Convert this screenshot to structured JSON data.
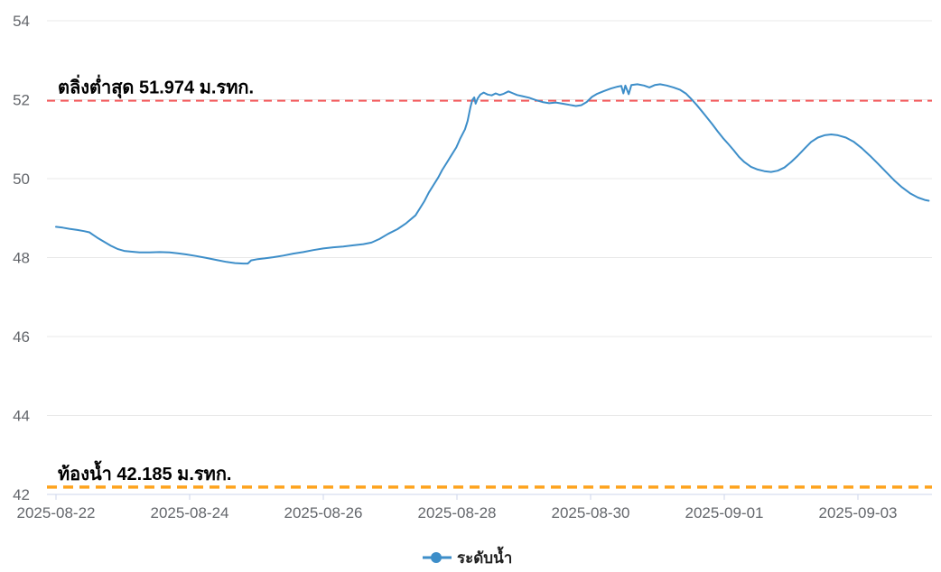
{
  "chart_data": {
    "type": "line",
    "title": "",
    "xlabel": "",
    "ylabel": "",
    "grid": true,
    "legend_position": "bottom-center",
    "ylim": [
      42,
      54
    ],
    "y_ticks": [
      42,
      44,
      46,
      48,
      50,
      52,
      54
    ],
    "x_range_days": [
      -0.14,
      13.11
    ],
    "x_tick_days": [
      0,
      2,
      4,
      6,
      8,
      10,
      12
    ],
    "x_tick_labels": [
      "2025-08-22",
      "2025-08-24",
      "2025-08-26",
      "2025-08-28",
      "2025-08-30",
      "2025-09-01",
      "2025-09-03"
    ],
    "reference_lines": [
      {
        "key": "bank-min",
        "label": "ตลิ่งต่ำสุด 51.974 ม.รทก.",
        "value": 51.974,
        "color": "#f4595b",
        "style": "dashed"
      },
      {
        "key": "riverbed",
        "label": "ท้องน้ำ 42.185 ม.รทก.",
        "value": 42.185,
        "color": "#fea31d",
        "style": "dashed"
      }
    ],
    "legend": [
      {
        "label": "ระดับน้ำ",
        "color": "#3d8ec9"
      }
    ],
    "series": [
      {
        "name": "ระดับน้ำ",
        "color": "#3d8ec9",
        "x_unit": "days since 2025-08-22",
        "points": [
          [
            0.0,
            48.78
          ],
          [
            0.1,
            48.76
          ],
          [
            0.2,
            48.73
          ],
          [
            0.32,
            48.7
          ],
          [
            0.42,
            48.67
          ],
          [
            0.5,
            48.64
          ],
          [
            0.55,
            48.58
          ],
          [
            0.62,
            48.5
          ],
          [
            0.72,
            48.4
          ],
          [
            0.82,
            48.3
          ],
          [
            0.92,
            48.22
          ],
          [
            1.02,
            48.17
          ],
          [
            1.12,
            48.15
          ],
          [
            1.25,
            48.13
          ],
          [
            1.4,
            48.13
          ],
          [
            1.55,
            48.14
          ],
          [
            1.7,
            48.13
          ],
          [
            1.82,
            48.11
          ],
          [
            1.95,
            48.08
          ],
          [
            2.1,
            48.04
          ],
          [
            2.25,
            47.99
          ],
          [
            2.4,
            47.94
          ],
          [
            2.55,
            47.89
          ],
          [
            2.68,
            47.86
          ],
          [
            2.8,
            47.85
          ],
          [
            2.87,
            47.85
          ],
          [
            2.92,
            47.93
          ],
          [
            3.02,
            47.96
          ],
          [
            3.12,
            47.98
          ],
          [
            3.25,
            48.01
          ],
          [
            3.4,
            48.05
          ],
          [
            3.55,
            48.1
          ],
          [
            3.7,
            48.14
          ],
          [
            3.85,
            48.19
          ],
          [
            4.0,
            48.23
          ],
          [
            4.15,
            48.26
          ],
          [
            4.3,
            48.28
          ],
          [
            4.45,
            48.31
          ],
          [
            4.6,
            48.34
          ],
          [
            4.72,
            48.38
          ],
          [
            4.84,
            48.47
          ],
          [
            4.97,
            48.6
          ],
          [
            5.11,
            48.72
          ],
          [
            5.24,
            48.87
          ],
          [
            5.38,
            49.07
          ],
          [
            5.51,
            49.42
          ],
          [
            5.58,
            49.65
          ],
          [
            5.65,
            49.84
          ],
          [
            5.72,
            50.03
          ],
          [
            5.78,
            50.22
          ],
          [
            5.85,
            50.41
          ],
          [
            5.92,
            50.6
          ],
          [
            5.99,
            50.79
          ],
          [
            6.05,
            51.02
          ],
          [
            6.12,
            51.25
          ],
          [
            6.16,
            51.46
          ],
          [
            6.2,
            51.8
          ],
          [
            6.23,
            51.99
          ],
          [
            6.26,
            52.06
          ],
          [
            6.28,
            51.9
          ],
          [
            6.31,
            52.03
          ],
          [
            6.35,
            52.13
          ],
          [
            6.4,
            52.18
          ],
          [
            6.46,
            52.13
          ],
          [
            6.52,
            52.11
          ],
          [
            6.58,
            52.16
          ],
          [
            6.64,
            52.12
          ],
          [
            6.7,
            52.15
          ],
          [
            6.77,
            52.21
          ],
          [
            6.84,
            52.16
          ],
          [
            6.9,
            52.12
          ],
          [
            6.98,
            52.09
          ],
          [
            7.08,
            52.05
          ],
          [
            7.18,
            51.99
          ],
          [
            7.28,
            51.94
          ],
          [
            7.38,
            51.91
          ],
          [
            7.48,
            51.93
          ],
          [
            7.58,
            51.9
          ],
          [
            7.68,
            51.87
          ],
          [
            7.78,
            51.84
          ],
          [
            7.86,
            51.86
          ],
          [
            7.94,
            51.94
          ],
          [
            8.02,
            52.07
          ],
          [
            8.1,
            52.15
          ],
          [
            8.2,
            52.22
          ],
          [
            8.3,
            52.28
          ],
          [
            8.4,
            52.33
          ],
          [
            8.46,
            52.35
          ],
          [
            8.49,
            52.16
          ],
          [
            8.52,
            52.36
          ],
          [
            8.57,
            52.14
          ],
          [
            8.61,
            52.37
          ],
          [
            8.7,
            52.39
          ],
          [
            8.8,
            52.36
          ],
          [
            8.88,
            52.31
          ],
          [
            8.96,
            52.37
          ],
          [
            9.04,
            52.39
          ],
          [
            9.14,
            52.36
          ],
          [
            9.24,
            52.31
          ],
          [
            9.34,
            52.25
          ],
          [
            9.43,
            52.15
          ],
          [
            9.5,
            52.03
          ],
          [
            9.58,
            51.88
          ],
          [
            9.66,
            51.72
          ],
          [
            9.74,
            51.55
          ],
          [
            9.82,
            51.38
          ],
          [
            9.9,
            51.2
          ],
          [
            9.98,
            51.03
          ],
          [
            10.06,
            50.88
          ],
          [
            10.14,
            50.72
          ],
          [
            10.22,
            50.55
          ],
          [
            10.3,
            50.42
          ],
          [
            10.4,
            50.3
          ],
          [
            10.5,
            50.23
          ],
          [
            10.6,
            50.19
          ],
          [
            10.7,
            50.17
          ],
          [
            10.8,
            50.2
          ],
          [
            10.9,
            50.28
          ],
          [
            11.0,
            50.42
          ],
          [
            11.1,
            50.58
          ],
          [
            11.2,
            50.76
          ],
          [
            11.3,
            50.93
          ],
          [
            11.4,
            51.04
          ],
          [
            11.5,
            51.1
          ],
          [
            11.6,
            51.12
          ],
          [
            11.7,
            51.1
          ],
          [
            11.82,
            51.04
          ],
          [
            11.94,
            50.93
          ],
          [
            12.06,
            50.77
          ],
          [
            12.18,
            50.58
          ],
          [
            12.3,
            50.38
          ],
          [
            12.42,
            50.17
          ],
          [
            12.54,
            49.96
          ],
          [
            12.66,
            49.78
          ],
          [
            12.78,
            49.63
          ],
          [
            12.9,
            49.52
          ],
          [
            13.0,
            49.46
          ],
          [
            13.06,
            49.44
          ]
        ]
      }
    ]
  },
  "colors": {
    "series_blue": "#3d8ec9",
    "bank_red": "#f4595b",
    "riverbed_orange": "#fea31d",
    "grid": "#e8e8e8",
    "axis": "#ccd6eb",
    "axis_text": "#63666b",
    "annotation_text": "#000000",
    "background": "#ffffff"
  }
}
